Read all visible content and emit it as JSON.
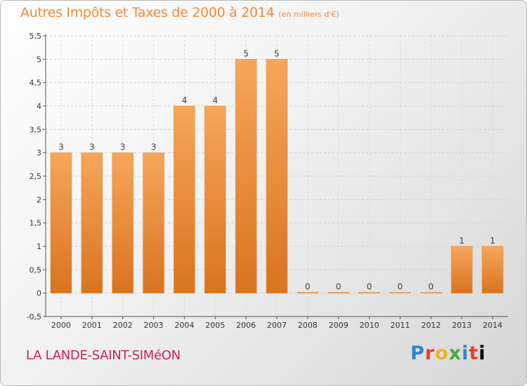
{
  "header": {
    "title": "Autres Impôts et Taxes de 2000 à 2014",
    "subtitle": "(en milliers d'€)"
  },
  "footer": {
    "commune": "LA LANDE-SAINT-SIMéON",
    "logo_letters": [
      "P",
      "r",
      "o",
      "x",
      "i",
      "t",
      "i"
    ]
  },
  "colors": {
    "bar_top": "#f6a65a",
    "bar_bottom": "#d97420",
    "title": "#f08a3c",
    "commune": "#c8235c"
  },
  "chart_data": {
    "type": "bar",
    "title": "Autres Impôts et Taxes de 2000 à 2014",
    "categories": [
      "2000",
      "2001",
      "2002",
      "2003",
      "2004",
      "2005",
      "2006",
      "2007",
      "2008",
      "2009",
      "2010",
      "2011",
      "2012",
      "2013",
      "2014"
    ],
    "values": [
      3,
      3,
      3,
      3,
      4,
      4,
      5,
      5,
      0,
      0,
      0,
      0,
      0,
      1,
      1
    ],
    "data_labels": [
      "3",
      "3",
      "3",
      "3",
      "4",
      "4",
      "5",
      "5",
      "0",
      "0",
      "0",
      "0",
      "0",
      "1",
      "1"
    ],
    "yticks": [
      -0.5,
      0,
      0.5,
      1,
      1.5,
      2,
      2.5,
      3,
      3.5,
      4,
      4.5,
      5,
      5.5
    ],
    "ytick_labels": [
      "-0,5",
      "0",
      "0,5",
      "1",
      "1,5",
      "2",
      "2,5",
      "3",
      "3,5",
      "4",
      "4,5",
      "5",
      "5,5"
    ],
    "ylim": [
      -0.5,
      5.5
    ],
    "grid": true,
    "legend": "none"
  }
}
